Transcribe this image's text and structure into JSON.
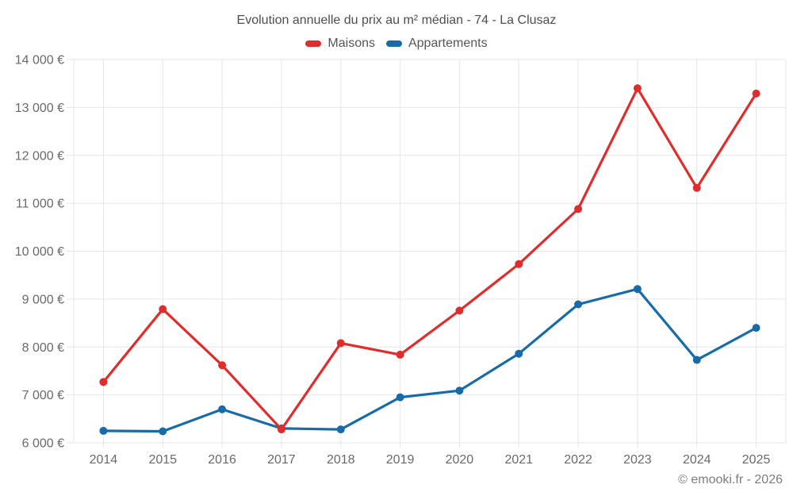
{
  "page": {
    "footer": "© emooki.fr - 2026"
  },
  "chart_data": {
    "type": "line",
    "title": "Evolution annuelle du prix au m² médian - 74 - La Clusaz",
    "categories": [
      "2014",
      "2015",
      "2016",
      "2017",
      "2018",
      "2019",
      "2020",
      "2021",
      "2022",
      "2023",
      "2024",
      "2025"
    ],
    "series": [
      {
        "name": "Maisons",
        "color": "#e02c2c",
        "values": [
          7270,
          8790,
          7620,
          6280,
          8080,
          7840,
          8760,
          9730,
          10880,
          13400,
          11320,
          13290
        ]
      },
      {
        "name": "Appartements",
        "color": "#176ba8",
        "values": [
          6250,
          6240,
          6700,
          6300,
          6280,
          6950,
          7090,
          7860,
          8890,
          9210,
          7730,
          8400
        ]
      }
    ],
    "xlabel": "",
    "ylabel": "",
    "ylim": [
      6000,
      14000
    ],
    "y_step": 1000,
    "y_tick_labels": [
      "6 000 €",
      "7 000 €",
      "8 000 €",
      "9 000 €",
      "10 000 €",
      "11 000 €",
      "12 000 €",
      "13 000 €",
      "14 000 €"
    ],
    "grid": true,
    "legend_position": "top",
    "unit": "€",
    "gridline_color": "#e6e6e6"
  }
}
